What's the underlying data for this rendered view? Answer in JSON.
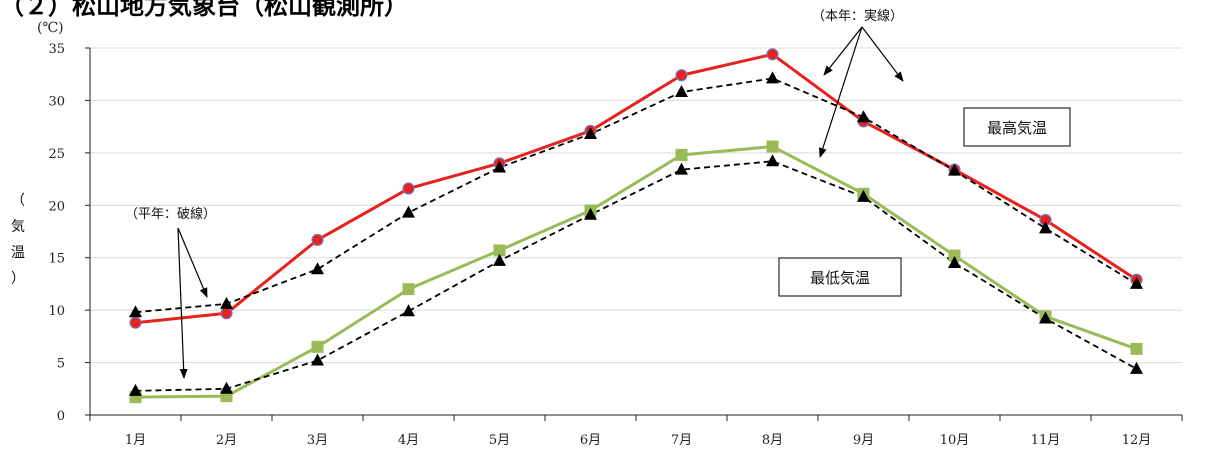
{
  "title": "（２）松山地方気象台（松山観測所）",
  "chart_data": {
    "type": "line",
    "categories": [
      "1月",
      "2月",
      "3月",
      "4月",
      "5月",
      "6月",
      "7月",
      "8月",
      "9月",
      "10月",
      "11月",
      "12月"
    ],
    "y_unit": "(℃)",
    "ylabel": "（気温）",
    "ylim": [
      0,
      35
    ],
    "yticks": [
      0,
      5,
      10,
      15,
      20,
      25,
      30,
      35
    ],
    "grid": true,
    "series": [
      {
        "name": "本年最高気温",
        "color": "#e8211e",
        "style": "solid",
        "marker": "circle",
        "values": [
          8.8,
          9.7,
          16.7,
          21.6,
          24.0,
          27.1,
          32.4,
          34.4,
          28.0,
          23.4,
          18.6,
          12.9
        ]
      },
      {
        "name": "平年最高気温",
        "color": "#000000",
        "style": "dashed",
        "marker": "triangle",
        "values": [
          9.8,
          10.6,
          13.9,
          19.3,
          23.6,
          26.8,
          30.8,
          32.1,
          28.4,
          23.3,
          17.8,
          12.5
        ]
      },
      {
        "name": "本年最低気温",
        "color": "#9bbb59",
        "style": "solid",
        "marker": "square",
        "values": [
          1.7,
          1.8,
          6.5,
          12.0,
          15.7,
          19.5,
          24.8,
          25.6,
          21.1,
          15.2,
          9.4,
          6.3
        ]
      },
      {
        "name": "平年最低気温",
        "color": "#000000",
        "style": "dashed",
        "marker": "triangle",
        "values": [
          2.3,
          2.5,
          5.2,
          9.9,
          14.7,
          19.1,
          23.4,
          24.2,
          20.8,
          14.5,
          9.2,
          4.4
        ]
      }
    ],
    "annotations": {
      "actual": "（本年：実線）",
      "normal": "（平年：破線）",
      "max_box": "最高気温",
      "min_box": "最低気温"
    }
  }
}
